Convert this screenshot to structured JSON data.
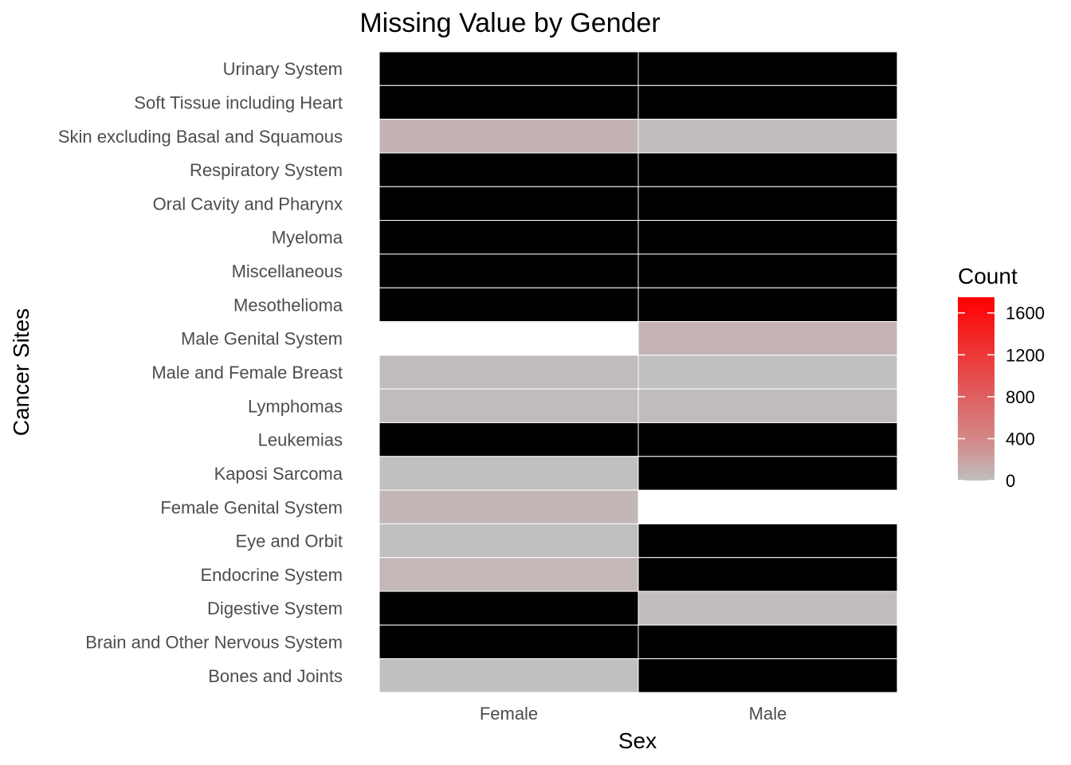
{
  "chart_data": {
    "type": "heatmap",
    "title": "Missing Value by Gender",
    "xlabel": "Sex",
    "ylabel": "Cancer Sites",
    "x_categories": [
      "Female",
      "Male"
    ],
    "y_categories": [
      "Urinary System",
      "Soft Tissue including Heart",
      "Skin excluding Basal and Squamous",
      "Respiratory System",
      "Oral Cavity and Pharynx",
      "Myeloma",
      "Miscellaneous",
      "Mesothelioma",
      "Male Genital System",
      "Male and Female Breast",
      "Lymphomas",
      "Leukemias",
      "Kaposi Sarcoma",
      "Female Genital System",
      "Eye and Orbit",
      "Endocrine System",
      "Digestive System",
      "Brain and Other Nervous System",
      "Bones and Joints"
    ],
    "values": [
      [
        null,
        null
      ],
      [
        null,
        null
      ],
      [
        120,
        30
      ],
      [
        null,
        null
      ],
      [
        null,
        null
      ],
      [
        null,
        null
      ],
      [
        null,
        null
      ],
      [
        null,
        null
      ],
      [
        "absent",
        110
      ],
      [
        40,
        0
      ],
      [
        35,
        45
      ],
      [
        null,
        null
      ],
      [
        0,
        null
      ],
      [
        90,
        "absent"
      ],
      [
        5,
        null
      ],
      [
        80,
        null
      ],
      [
        null,
        30
      ],
      [
        null,
        null
      ],
      [
        0,
        null
      ]
    ],
    "na_color": "#000000",
    "legend": {
      "title": "Count",
      "ticks": [
        0,
        400,
        800,
        1200,
        1600
      ],
      "range": [
        0,
        1750
      ],
      "low_color": "#c0c0c0",
      "high_color": "#ff0000",
      "placement": "right"
    },
    "grid": false
  }
}
